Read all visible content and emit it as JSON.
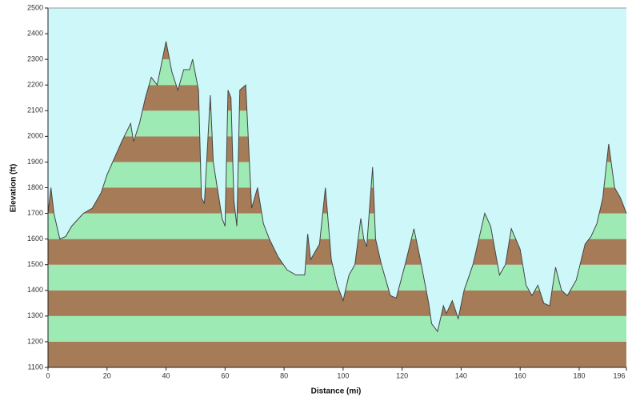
{
  "chart_data": {
    "type": "area",
    "x_label": "Distance (mi)",
    "y_label": "Elevation (ft)",
    "x": [
      0,
      1,
      2,
      3,
      4,
      6,
      8,
      12,
      15,
      18,
      20,
      25,
      28,
      29,
      31,
      33,
      35,
      37,
      40,
      42,
      44,
      46,
      48,
      49,
      51,
      52,
      53,
      55,
      56,
      59,
      60,
      61,
      62,
      63,
      64,
      65,
      67,
      69,
      71,
      73,
      75,
      78,
      81,
      84,
      87,
      88,
      89,
      92,
      94,
      96,
      98,
      100,
      102,
      104,
      106,
      107,
      108,
      110,
      111,
      113,
      116,
      118,
      121,
      124,
      126,
      129,
      130,
      132,
      134,
      135,
      137,
      139,
      141,
      144,
      148,
      150,
      153,
      155,
      157,
      160,
      162,
      164,
      166,
      168,
      170,
      172,
      174,
      176,
      179,
      182,
      184,
      186,
      188,
      190,
      192,
      194,
      196
    ],
    "y": [
      1700,
      1800,
      1700,
      1650,
      1600,
      1610,
      1650,
      1700,
      1720,
      1780,
      1850,
      1980,
      2050,
      1980,
      2050,
      2150,
      2230,
      2200,
      2370,
      2250,
      2180,
      2260,
      2260,
      2300,
      2180,
      1760,
      1740,
      2160,
      1900,
      1680,
      1650,
      2180,
      2150,
      1750,
      1650,
      2180,
      2200,
      1720,
      1800,
      1660,
      1600,
      1530,
      1480,
      1460,
      1460,
      1620,
      1520,
      1580,
      1800,
      1520,
      1420,
      1360,
      1460,
      1500,
      1680,
      1600,
      1570,
      1880,
      1600,
      1500,
      1380,
      1370,
      1500,
      1640,
      1530,
      1350,
      1270,
      1240,
      1340,
      1310,
      1360,
      1290,
      1400,
      1500,
      1700,
      1650,
      1460,
      1500,
      1640,
      1560,
      1420,
      1380,
      1420,
      1350,
      1340,
      1490,
      1400,
      1380,
      1440,
      1580,
      1610,
      1660,
      1760,
      1970,
      1800,
      1760,
      1700
    ],
    "xlim": [
      0,
      196
    ],
    "ylim": [
      1100,
      2500
    ],
    "xticks": [
      0,
      20,
      40,
      60,
      80,
      100,
      120,
      140,
      160,
      180,
      196
    ],
    "yticks": [
      1100,
      1200,
      1300,
      1400,
      1500,
      1600,
      1700,
      1800,
      1900,
      2000,
      2100,
      2200,
      2300,
      2400,
      2500
    ],
    "band_colors": [
      "#a67c58",
      "#9eeab4"
    ],
    "background_color": "#cdf7f9",
    "line_color": "#444444"
  }
}
